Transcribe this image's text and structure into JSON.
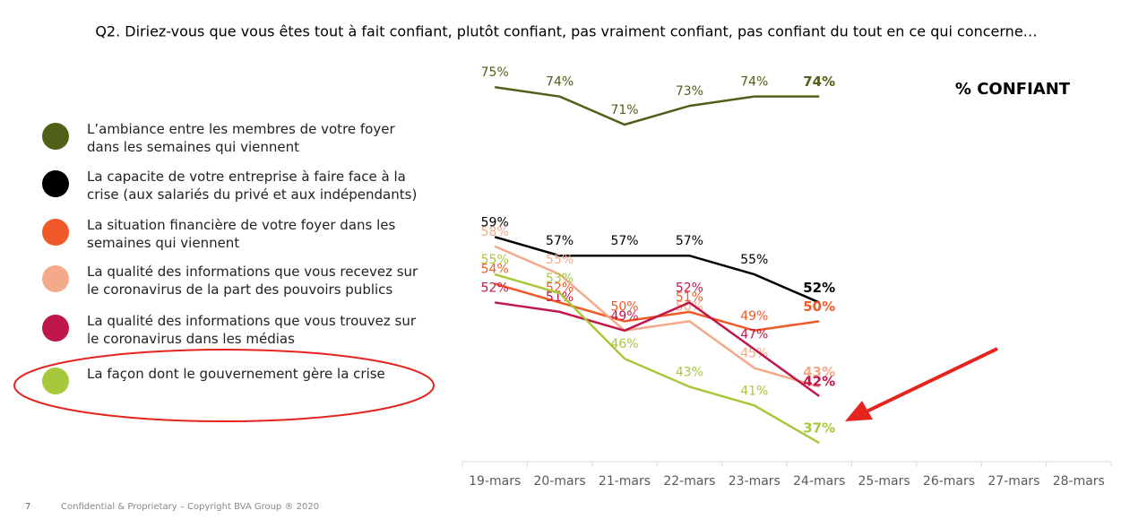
{
  "header": {
    "question": "Q2. Diriez-vous que vous êtes tout à fait confiant, plutôt confiant, pas vraiment confiant, pas confiant du tout en ce qui concerne…",
    "metric": "% CONFIANT"
  },
  "footer": {
    "page": "7",
    "copyright": "Confidential & Proprietary – Copyright BVA Group ®  2020"
  },
  "chart_data": {
    "type": "line",
    "categories": [
      "19-mars",
      "20-mars",
      "21-mars",
      "22-mars",
      "23-mars",
      "24-mars",
      "25-mars",
      "26-mars",
      "27-mars",
      "28-mars"
    ],
    "ylim": [
      35,
      80
    ],
    "series": [
      {
        "name": "L’ambiance entre les membres de votre foyer dans les semaines qui viennent",
        "color": "#4f6019",
        "values": [
          75,
          74,
          71,
          73,
          74,
          74,
          null,
          null,
          null,
          null
        ],
        "value_labels": [
          "75%",
          "74%",
          "71%",
          "73%",
          "74%",
          "74%",
          null,
          null,
          null,
          null
        ]
      },
      {
        "name": "La capacite de votre entreprise à faire face à la crise (aux salariés du privé et aux indépendants)",
        "color": "#000000",
        "values": [
          59,
          57,
          57,
          57,
          55,
          52,
          null,
          null,
          null,
          null
        ],
        "value_labels": [
          "59%",
          "57%",
          "57%",
          "57%",
          "55%",
          "52%",
          null,
          null,
          null,
          null
        ]
      },
      {
        "name": "La situation financière de votre foyer dans les semaines qui viennent",
        "color": "#f05a28",
        "values": [
          54,
          52,
          50,
          51,
          49,
          50,
          null,
          null,
          null,
          null
        ],
        "value_labels": [
          "54%",
          "52%",
          "50%",
          "51%",
          "49%",
          "50%",
          null,
          null,
          null,
          null
        ]
      },
      {
        "name": "La qualité des informations que vous recevez sur le coronavirus de la part des pouvoirs publics",
        "color": "#f4a98a",
        "values": [
          58,
          55,
          49,
          50,
          45,
          43,
          null,
          null,
          null,
          null
        ],
        "value_labels": [
          "58%",
          "55%",
          null,
          "50%",
          "45%",
          "43%",
          null,
          null,
          null,
          null
        ]
      },
      {
        "name": "La qualité des informations que vous trouvez sur le coronavirus dans les médias",
        "color": "#c0174a",
        "values": [
          52,
          51,
          49,
          52,
          47,
          42,
          null,
          null,
          null,
          null
        ],
        "value_labels": [
          "52%",
          "51%",
          "49%",
          "52%",
          "47%",
          "42%",
          null,
          null,
          null,
          null
        ]
      },
      {
        "name": "La façon dont le gouvernement gère la crise",
        "color": "#a8c83c",
        "values": [
          55,
          53,
          46,
          43,
          41,
          37,
          null,
          null,
          null,
          null
        ],
        "value_labels": [
          "55%",
          "53%",
          "46%",
          "43%",
          "41%",
          "37%",
          null,
          null,
          null,
          null
        ]
      }
    ]
  }
}
